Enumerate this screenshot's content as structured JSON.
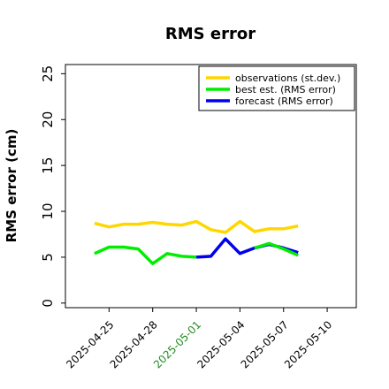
{
  "chart_data": {
    "type": "line",
    "title": "RMS error",
    "xlabel": "",
    "ylabel": "RMS error (cm)",
    "ylim": [
      -0.5,
      26
    ],
    "yticks": [
      0,
      5,
      10,
      15,
      20,
      25
    ],
    "xlim": [
      "2025-04-22",
      "2025-05-12"
    ],
    "xticks": [
      {
        "date": "2025-04-25",
        "label": "2025-04-25",
        "color": "#000000"
      },
      {
        "date": "2025-04-28",
        "label": "2025-04-28",
        "color": "#000000"
      },
      {
        "date": "2025-05-01",
        "label": "2025-05-01",
        "color": "#228B22"
      },
      {
        "date": "2025-05-04",
        "label": "2025-05-04",
        "color": "#000000"
      },
      {
        "date": "2025-05-07",
        "label": "2025-05-07",
        "color": "#000000"
      },
      {
        "date": "2025-05-10",
        "label": "2025-05-10",
        "color": "#000000"
      }
    ],
    "grid": false,
    "legend_position": "top-right",
    "series": [
      {
        "name": "observations (st.dev.)",
        "color": "#FFD700",
        "x": [
          "2025-04-24",
          "2025-04-25",
          "2025-04-26",
          "2025-04-27",
          "2025-04-28",
          "2025-04-29",
          "2025-04-30",
          "2025-05-01",
          "2025-05-02",
          "2025-05-03",
          "2025-05-04",
          "2025-05-05",
          "2025-05-06",
          "2025-05-07",
          "2025-05-08"
        ],
        "y": [
          8.7,
          8.3,
          8.6,
          8.6,
          8.8,
          8.6,
          8.5,
          8.9,
          8.0,
          7.7,
          8.9,
          7.8,
          8.1,
          8.1,
          8.4
        ]
      },
      {
        "name": "best est. (RMS error)",
        "color": "#00EE00",
        "x": [
          "2025-04-24",
          "2025-04-25",
          "2025-04-26",
          "2025-04-27",
          "2025-04-28",
          "2025-04-29",
          "2025-04-30",
          "2025-05-01"
        ],
        "y": [
          5.4,
          6.1,
          6.1,
          5.9,
          4.3,
          5.4,
          5.1,
          5.0
        ]
      },
      {
        "name": "forecast (RMS error)",
        "color": "#0000EE",
        "x": [
          "2025-05-01",
          "2025-05-02",
          "2025-05-03",
          "2025-05-04",
          "2025-05-05",
          "2025-05-06",
          "2025-05-07",
          "2025-05-08"
        ],
        "y": [
          5.0,
          5.1,
          7.0,
          5.4,
          6.0,
          6.4,
          6.0,
          5.5
        ]
      },
      {
        "name": "",
        "color": "#00EE00",
        "x": [
          "2025-05-05",
          "2025-05-06",
          "2025-05-07",
          "2025-05-08"
        ],
        "y": [
          6.0,
          6.5,
          5.9,
          5.2
        ]
      }
    ]
  }
}
